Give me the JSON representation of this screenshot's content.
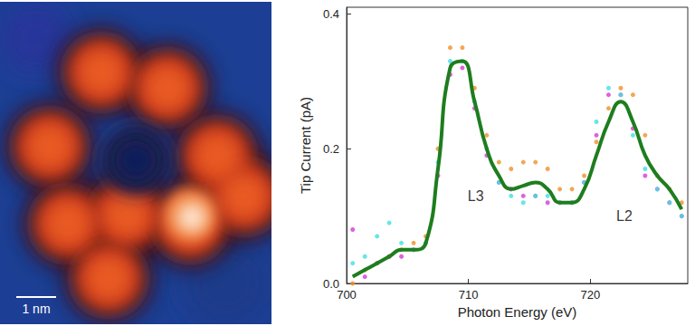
{
  "image": {
    "scale_bar_label": "1 nm"
  },
  "chart_data": {
    "type": "scatter",
    "x_label": "Photon Energy (eV)",
    "y_label": "Tip Current (pA)",
    "xlim": [
      700,
      728
    ],
    "xticks": [
      700,
      710,
      720
    ],
    "ylim": [
      0,
      0.41
    ],
    "yticks": [
      {
        "value": 0,
        "label": "0.0"
      },
      {
        "value": 0.2,
        "label": "0.2"
      },
      {
        "value": 0.4,
        "label": "0.4"
      }
    ],
    "grid": false,
    "x": [
      700.5,
      701.5,
      702.5,
      703.5,
      704.5,
      705.5,
      706.5,
      707.5,
      708.5,
      709.5,
      710.5,
      711.5,
      712.5,
      713.5,
      714.5,
      715.5,
      716.5,
      717.5,
      718.5,
      719.5,
      720.5,
      721.5,
      722.5,
      723.5,
      724.5,
      725.5,
      726.5,
      727.5
    ],
    "series": [
      {
        "type": "scatter",
        "marker": "circle",
        "color": "#f0902a",
        "values": [
          0.0,
          0.02,
          0.03,
          0.04,
          0.05,
          0.06,
          0.07,
          0.2,
          0.35,
          0.35,
          0.29,
          0.22,
          0.18,
          0.17,
          0.18,
          0.18,
          0.17,
          0.14,
          0.14,
          0.16,
          0.21,
          0.26,
          0.29,
          0.28,
          0.22,
          0.16,
          0.14,
          0.12
        ]
      },
      {
        "type": "scatter",
        "marker": "circle",
        "color": "#d63ad6",
        "values": [
          0.08,
          0.01,
          0.03,
          0.04,
          0.04,
          0.05,
          0.06,
          0.16,
          0.31,
          0.32,
          0.26,
          0.19,
          0.15,
          0.14,
          0.13,
          0.13,
          0.12,
          0.12,
          0.12,
          0.15,
          0.22,
          0.28,
          0.28,
          0.23,
          0.16,
          0.14,
          0.12,
          0.1
        ]
      },
      {
        "type": "scatter",
        "marker": "circle",
        "color": "#3ee0e0",
        "values": [
          0.03,
          0.04,
          0.07,
          0.09,
          0.06,
          0.05,
          0.06,
          0.18,
          0.33,
          0.33,
          0.27,
          0.2,
          0.15,
          0.13,
          0.12,
          0.13,
          0.13,
          0.12,
          0.12,
          0.15,
          0.24,
          0.29,
          0.28,
          0.22,
          0.17,
          0.14,
          0.12,
          0.1
        ]
      },
      {
        "type": "line",
        "line_style": "solid",
        "color": "#1e7d1e",
        "values": [
          0.01,
          0.02,
          0.03,
          0.04,
          0.05,
          0.05,
          0.06,
          0.17,
          0.32,
          0.33,
          0.27,
          0.2,
          0.16,
          0.14,
          0.145,
          0.15,
          0.14,
          0.12,
          0.12,
          0.14,
          0.19,
          0.24,
          0.27,
          0.24,
          0.19,
          0.16,
          0.14,
          0.11
        ]
      }
    ],
    "annotations": [
      {
        "text": "L3",
        "x": 710.6,
        "y": 0.13
      },
      {
        "text": "L2",
        "x": 722.8,
        "y": 0.1
      }
    ]
  }
}
